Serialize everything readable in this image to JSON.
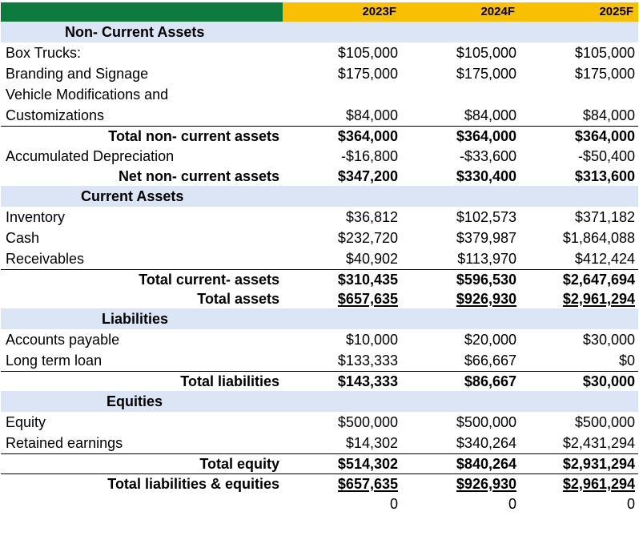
{
  "header": {
    "years": [
      "2023F",
      "2024F",
      "2025F"
    ]
  },
  "rows": [
    {
      "type": "section",
      "label": "Non- Current Assets",
      "indent": 80
    },
    {
      "type": "row",
      "label": "Box Trucks:",
      "values": [
        "$105,000",
        "$105,000",
        "$105,000"
      ]
    },
    {
      "type": "row",
      "label": "Branding and Signage",
      "values": [
        "$175,000",
        "$175,000",
        "$175,000"
      ]
    },
    {
      "type": "row",
      "label": "Vehicle Modifications and",
      "values": [
        "",
        "",
        ""
      ]
    },
    {
      "type": "row",
      "label": "Customizations",
      "values": [
        "$84,000",
        "$84,000",
        "$84,000"
      ]
    },
    {
      "type": "total",
      "label": "Total non- current assets",
      "values": [
        "$364,000",
        "$364,000",
        "$364,000"
      ],
      "topline": true
    },
    {
      "type": "row",
      "label": "Accumulated Depreciation",
      "values": [
        "-$16,800",
        "-$33,600",
        "-$50,400"
      ]
    },
    {
      "type": "total",
      "label": "Net non- current assets",
      "values": [
        "$347,200",
        "$330,400",
        "$313,600"
      ]
    },
    {
      "type": "section",
      "label": "Current Assets",
      "indent": 100
    },
    {
      "type": "row",
      "label": "Inventory",
      "values": [
        "$36,812",
        "$102,573",
        "$371,182"
      ]
    },
    {
      "type": "row",
      "label": "Cash",
      "values": [
        "$232,720",
        "$379,987",
        "$1,864,088"
      ]
    },
    {
      "type": "row",
      "label": "Receivables",
      "values": [
        "$40,902",
        "$113,970",
        "$412,424"
      ]
    },
    {
      "type": "total",
      "label": "Total current- assets",
      "values": [
        "$310,435",
        "$596,530",
        "$2,647,694"
      ],
      "topline": true
    },
    {
      "type": "total",
      "label": "Total assets",
      "values": [
        "$657,635",
        "$926,930",
        "$2,961,294"
      ],
      "underline": true
    },
    {
      "type": "section",
      "label": "Liabilities",
      "indent": 126
    },
    {
      "type": "row",
      "label": "Accounts payable",
      "values": [
        "$10,000",
        "$20,000",
        "$30,000"
      ]
    },
    {
      "type": "row",
      "label": "Long term loan",
      "values": [
        "$133,333",
        "$66,667",
        "$0"
      ]
    },
    {
      "type": "total",
      "label": "Total liabilities",
      "values": [
        "$143,333",
        "$86,667",
        "$30,000"
      ],
      "topline": true
    },
    {
      "type": "section",
      "label": "Equities",
      "indent": 132
    },
    {
      "type": "row",
      "label": "Equity",
      "values": [
        "$500,000",
        "$500,000",
        "$500,000"
      ]
    },
    {
      "type": "row",
      "label": "Retained earnings",
      "values": [
        "$14,302",
        "$340,264",
        "$2,431,294"
      ]
    },
    {
      "type": "total",
      "label": "Total equity",
      "values": [
        "$514,302",
        "$840,264",
        "$2,931,294"
      ],
      "topline": true
    },
    {
      "type": "total",
      "label": "Total liabilities & equities",
      "values": [
        "$657,635",
        "$926,930",
        "$2,961,294"
      ],
      "topline": true,
      "underline": true
    },
    {
      "type": "row",
      "label": "",
      "values": [
        "0",
        "0",
        "0"
      ]
    }
  ]
}
